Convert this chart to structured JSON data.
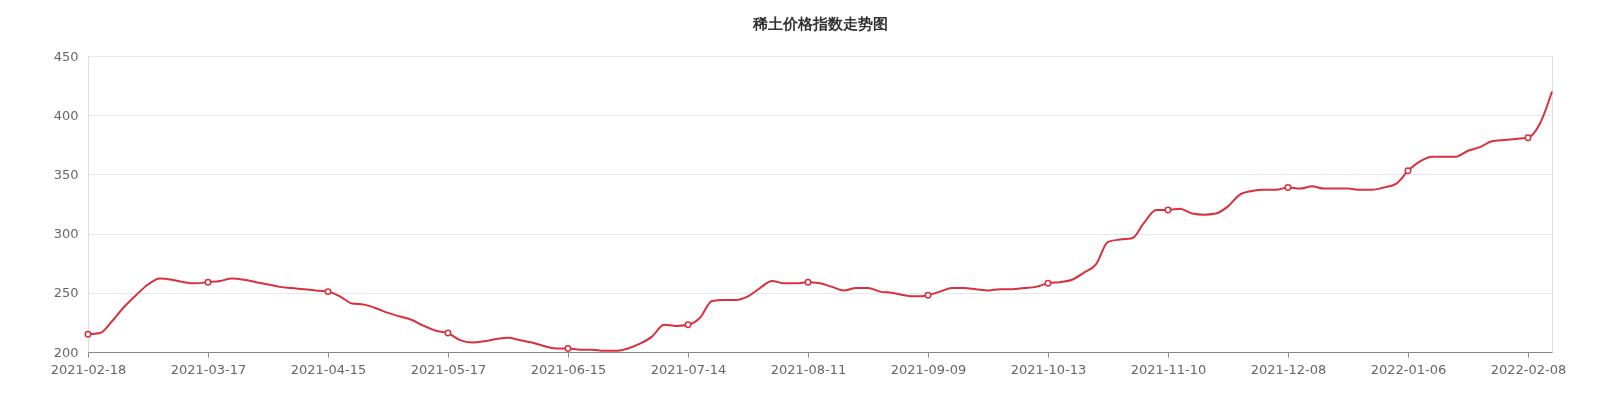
{
  "chart_data": {
    "type": "line",
    "title": "稀土价格指数走势图",
    "categories": [
      "2021-02-18",
      null,
      null,
      null,
      null,
      null,
      null,
      null,
      null,
      null,
      "2021-03-17",
      null,
      null,
      null,
      null,
      null,
      null,
      null,
      null,
      null,
      "2021-04-15",
      null,
      null,
      null,
      null,
      null,
      null,
      null,
      null,
      null,
      "2021-05-17",
      null,
      null,
      null,
      null,
      null,
      null,
      null,
      null,
      null,
      "2021-06-15",
      null,
      null,
      null,
      null,
      null,
      null,
      null,
      null,
      null,
      "2021-07-14",
      null,
      null,
      null,
      null,
      null,
      null,
      null,
      null,
      null,
      "2021-08-11",
      null,
      null,
      null,
      null,
      null,
      null,
      null,
      null,
      null,
      "2021-09-09",
      null,
      null,
      null,
      null,
      null,
      null,
      null,
      null,
      null,
      "2021-10-13",
      null,
      null,
      null,
      null,
      null,
      null,
      null,
      null,
      null,
      "2021-11-10",
      null,
      null,
      null,
      null,
      null,
      null,
      null,
      null,
      null,
      "2021-12-08",
      null,
      null,
      null,
      null,
      null,
      null,
      null,
      null,
      null,
      "2022-01-06",
      null,
      null,
      null,
      null,
      null,
      null,
      null,
      null,
      null,
      "2022-02-08",
      null,
      null
    ],
    "series": [
      {
        "color": "#d9303e",
        "values": [
          215,
          216,
          226,
          238,
          248,
          257,
          262,
          261,
          259,
          258,
          259,
          260,
          262,
          261,
          259,
          257,
          255,
          254,
          253,
          252,
          251,
          247,
          241,
          240,
          237,
          233,
          230,
          227,
          222,
          218,
          216,
          210,
          208,
          209,
          211,
          212,
          210,
          208,
          205,
          203,
          203,
          202,
          202,
          201,
          201,
          203,
          207,
          213,
          223,
          222,
          223,
          229,
          243,
          244,
          244,
          247,
          254,
          260,
          258,
          258,
          259,
          258,
          255,
          252,
          254,
          254,
          251,
          250,
          248,
          247,
          248,
          251,
          254,
          254,
          253,
          252,
          253,
          253,
          254,
          255,
          258,
          259,
          261,
          267,
          274,
          293,
          295,
          296,
          309,
          320,
          320,
          321,
          317,
          316,
          317,
          323,
          333,
          336,
          337,
          337,
          339,
          338,
          340,
          338,
          338,
          338,
          337,
          337,
          339,
          342,
          353,
          361,
          365,
          365,
          365,
          370,
          373,
          378,
          379,
          380,
          381,
          393,
          420
        ]
      },
      {
        "type": "scatter",
        "marker": "circle",
        "color": "#d9303e",
        "values": [
          215,
          null,
          null,
          null,
          null,
          null,
          null,
          null,
          null,
          null,
          259,
          null,
          null,
          null,
          null,
          null,
          null,
          null,
          null,
          null,
          251,
          null,
          null,
          null,
          null,
          null,
          null,
          null,
          null,
          null,
          216,
          null,
          null,
          null,
          null,
          null,
          null,
          null,
          null,
          null,
          203,
          null,
          null,
          null,
          null,
          null,
          null,
          null,
          null,
          null,
          223,
          null,
          null,
          null,
          null,
          null,
          null,
          null,
          null,
          null,
          259,
          null,
          null,
          null,
          null,
          null,
          null,
          null,
          null,
          null,
          248,
          null,
          null,
          null,
          null,
          null,
          null,
          null,
          null,
          null,
          258,
          null,
          null,
          null,
          null,
          null,
          null,
          null,
          null,
          null,
          320,
          null,
          null,
          null,
          null,
          null,
          null,
          null,
          null,
          null,
          339,
          null,
          null,
          null,
          null,
          null,
          null,
          null,
          null,
          null,
          353,
          null,
          null,
          null,
          null,
          null,
          null,
          null,
          null,
          null,
          381,
          null,
          null
        ]
      }
    ],
    "ylim": [
      200,
      450
    ],
    "yticks": [
      200,
      250,
      300,
      350,
      400,
      450
    ],
    "grid": "y",
    "line_style": "solid"
  }
}
